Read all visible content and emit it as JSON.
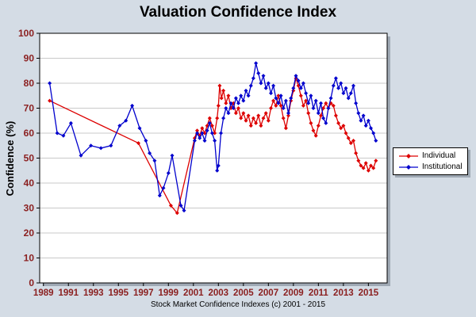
{
  "chart_data": {
    "type": "line",
    "title": "Valuation Confidence Index",
    "ylabel": "Confidence (%)",
    "xlabel": "",
    "footnote": "Stock Market Confidence Indexes (c) 2001 - 2015",
    "xlim": [
      1988.7,
      2016.5
    ],
    "ylim": [
      0,
      100
    ],
    "xticks": [
      1989,
      1991,
      1993,
      1995,
      1997,
      1999,
      2001,
      2003,
      2005,
      2007,
      2009,
      2011,
      2013,
      2015
    ],
    "yticks": [
      0,
      10,
      20,
      30,
      40,
      50,
      60,
      70,
      80,
      90,
      100
    ],
    "tick_color": "#8b2020",
    "grid": "horizontal",
    "legend_position": "right",
    "series": [
      {
        "name": "Individual",
        "color": "#dd0000",
        "points": [
          [
            1989.5,
            73
          ],
          [
            1996.6,
            56
          ],
          [
            1999.2,
            31
          ],
          [
            1999.7,
            28
          ],
          [
            2001.1,
            58
          ],
          [
            2001.3,
            61
          ],
          [
            2001.5,
            59
          ],
          [
            2001.7,
            62
          ],
          [
            2001.9,
            60
          ],
          [
            2002.1,
            63
          ],
          [
            2002.3,
            66
          ],
          [
            2002.5,
            63
          ],
          [
            2002.7,
            60
          ],
          [
            2002.9,
            66
          ],
          [
            2003.0,
            71
          ],
          [
            2003.1,
            79
          ],
          [
            2003.25,
            74
          ],
          [
            2003.4,
            77
          ],
          [
            2003.6,
            72
          ],
          [
            2003.8,
            75
          ],
          [
            2004.0,
            70
          ],
          [
            2004.2,
            72
          ],
          [
            2004.4,
            68
          ],
          [
            2004.6,
            70
          ],
          [
            2004.8,
            66
          ],
          [
            2005.0,
            68
          ],
          [
            2005.2,
            65
          ],
          [
            2005.4,
            67
          ],
          [
            2005.6,
            63
          ],
          [
            2005.8,
            66
          ],
          [
            2006.0,
            64
          ],
          [
            2006.2,
            67
          ],
          [
            2006.4,
            63
          ],
          [
            2006.6,
            66
          ],
          [
            2006.8,
            68
          ],
          [
            2007.0,
            65
          ],
          [
            2007.2,
            70
          ],
          [
            2007.4,
            73
          ],
          [
            2007.6,
            71
          ],
          [
            2007.8,
            75
          ],
          [
            2008.0,
            71
          ],
          [
            2008.2,
            66
          ],
          [
            2008.4,
            62
          ],
          [
            2008.6,
            67
          ],
          [
            2008.8,
            73
          ],
          [
            2009.0,
            77
          ],
          [
            2009.2,
            82
          ],
          [
            2009.4,
            79
          ],
          [
            2009.6,
            75
          ],
          [
            2009.8,
            71
          ],
          [
            2010.0,
            73
          ],
          [
            2010.2,
            68
          ],
          [
            2010.4,
            64
          ],
          [
            2010.6,
            61
          ],
          [
            2010.8,
            59
          ],
          [
            2011.0,
            63
          ],
          [
            2011.2,
            67
          ],
          [
            2011.4,
            70
          ],
          [
            2011.6,
            72
          ],
          [
            2011.8,
            70
          ],
          [
            2012.0,
            72
          ],
          [
            2012.2,
            71
          ],
          [
            2012.4,
            67
          ],
          [
            2012.6,
            64
          ],
          [
            2012.8,
            62
          ],
          [
            2013.0,
            63
          ],
          [
            2013.2,
            60
          ],
          [
            2013.4,
            58
          ],
          [
            2013.6,
            56
          ],
          [
            2013.8,
            57
          ],
          [
            2014.0,
            52
          ],
          [
            2014.2,
            49
          ],
          [
            2014.4,
            47
          ],
          [
            2014.6,
            46
          ],
          [
            2014.8,
            48
          ],
          [
            2015.0,
            45
          ],
          [
            2015.2,
            47
          ],
          [
            2015.4,
            46
          ],
          [
            2015.6,
            49
          ]
        ]
      },
      {
        "name": "Institutional",
        "color": "#0000cd",
        "points": [
          [
            1989.5,
            80
          ],
          [
            1990.1,
            60
          ],
          [
            1990.6,
            59
          ],
          [
            1991.2,
            64
          ],
          [
            1992.0,
            51
          ],
          [
            1992.8,
            55
          ],
          [
            1993.6,
            54
          ],
          [
            1994.4,
            55
          ],
          [
            1995.1,
            63
          ],
          [
            1995.6,
            65
          ],
          [
            1996.1,
            71
          ],
          [
            1996.7,
            62
          ],
          [
            1997.2,
            57
          ],
          [
            1997.5,
            52
          ],
          [
            1997.9,
            49
          ],
          [
            1998.3,
            35
          ],
          [
            1998.6,
            38
          ],
          [
            1999.0,
            44
          ],
          [
            1999.3,
            51
          ],
          [
            2000.0,
            31
          ],
          [
            2000.25,
            29
          ],
          [
            2001.1,
            57
          ],
          [
            2001.3,
            60
          ],
          [
            2001.5,
            58
          ],
          [
            2001.7,
            60
          ],
          [
            2001.9,
            57
          ],
          [
            2002.1,
            61
          ],
          [
            2002.3,
            64
          ],
          [
            2002.5,
            60
          ],
          [
            2002.7,
            57
          ],
          [
            2002.9,
            45
          ],
          [
            2003.0,
            47
          ],
          [
            2003.2,
            60
          ],
          [
            2003.4,
            66
          ],
          [
            2003.6,
            70
          ],
          [
            2003.8,
            68
          ],
          [
            2004.0,
            72
          ],
          [
            2004.2,
            70
          ],
          [
            2004.4,
            74
          ],
          [
            2004.6,
            72
          ],
          [
            2004.8,
            75
          ],
          [
            2005.0,
            73
          ],
          [
            2005.2,
            77
          ],
          [
            2005.4,
            75
          ],
          [
            2005.6,
            79
          ],
          [
            2005.8,
            82
          ],
          [
            2006.0,
            88
          ],
          [
            2006.2,
            84
          ],
          [
            2006.4,
            80
          ],
          [
            2006.6,
            83
          ],
          [
            2006.8,
            78
          ],
          [
            2007.0,
            80
          ],
          [
            2007.2,
            76
          ],
          [
            2007.4,
            79
          ],
          [
            2007.6,
            74
          ],
          [
            2007.8,
            72
          ],
          [
            2008.0,
            75
          ],
          [
            2008.2,
            70
          ],
          [
            2008.4,
            73
          ],
          [
            2008.6,
            68
          ],
          [
            2008.8,
            74
          ],
          [
            2009.0,
            78
          ],
          [
            2009.2,
            83
          ],
          [
            2009.4,
            81
          ],
          [
            2009.6,
            78
          ],
          [
            2009.8,
            80
          ],
          [
            2010.0,
            76
          ],
          [
            2010.2,
            72
          ],
          [
            2010.4,
            75
          ],
          [
            2010.6,
            70
          ],
          [
            2010.8,
            73
          ],
          [
            2011.0,
            68
          ],
          [
            2011.2,
            72
          ],
          [
            2011.4,
            66
          ],
          [
            2011.6,
            64
          ],
          [
            2011.8,
            70
          ],
          [
            2012.0,
            74
          ],
          [
            2012.2,
            79
          ],
          [
            2012.4,
            82
          ],
          [
            2012.6,
            78
          ],
          [
            2012.8,
            80
          ],
          [
            2013.0,
            76
          ],
          [
            2013.2,
            78
          ],
          [
            2013.4,
            74
          ],
          [
            2013.6,
            76
          ],
          [
            2013.8,
            79
          ],
          [
            2014.0,
            72
          ],
          [
            2014.2,
            68
          ],
          [
            2014.4,
            65
          ],
          [
            2014.6,
            67
          ],
          [
            2014.8,
            63
          ],
          [
            2015.0,
            65
          ],
          [
            2015.2,
            62
          ],
          [
            2015.4,
            60
          ],
          [
            2015.6,
            57
          ]
        ]
      }
    ]
  }
}
